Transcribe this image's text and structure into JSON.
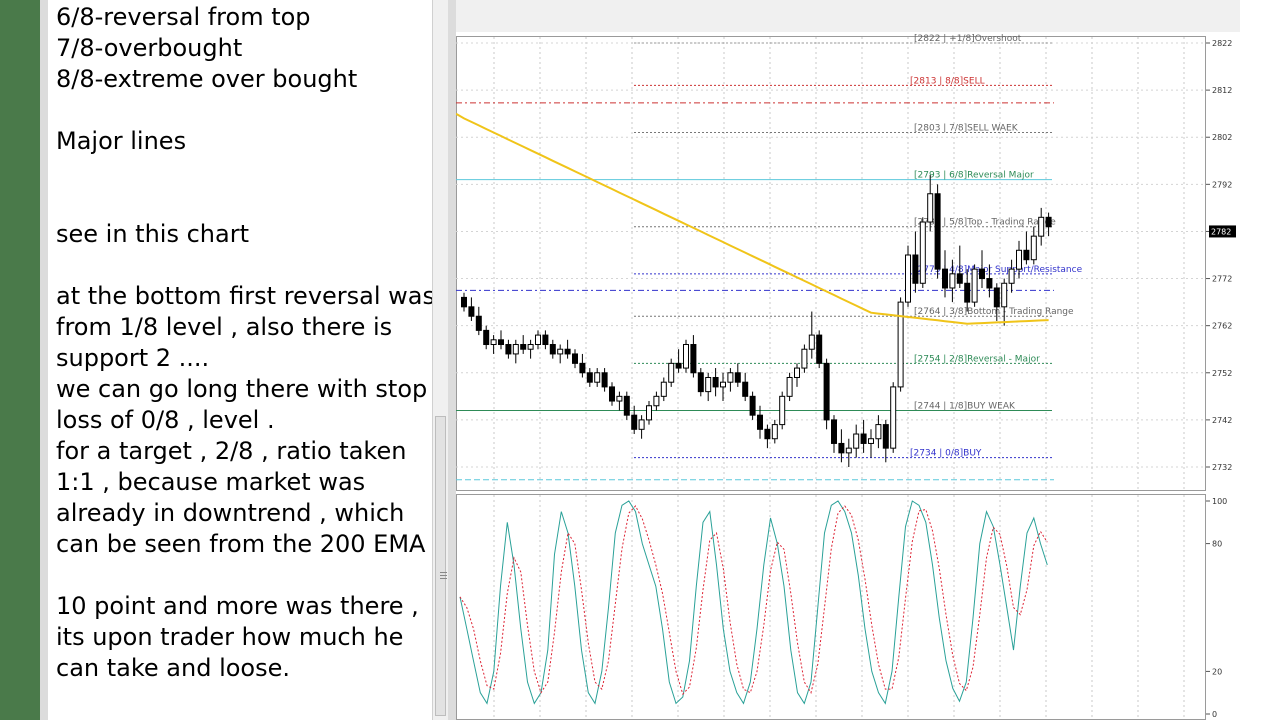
{
  "notes": {
    "lines": [
      "6/8-reversal from top",
      "7/8-overbought",
      "8/8-extreme over bought",
      "",
      "Major lines",
      "",
      "",
      "see in this chart",
      "",
      "at the bottom first reversal was",
      "from 1/8 level , also there is",
      "support 2 ....",
      "we can go long there with stop",
      "loss of 0/8 , level .",
      "for a target , 2/8 , ratio taken",
      "1:1 , because market was",
      "already in downtrend , which",
      "can be seen from the 200 EMA",
      "",
      "10 point and more was there ,",
      "its upon trader how much he",
      "can take and loose."
    ]
  },
  "chart": {
    "price_axis_ticks": [
      "2822",
      "2812",
      "2802",
      "2792",
      "2782",
      "2772",
      "2762",
      "2752",
      "2742",
      "2732"
    ],
    "current_price_tag": "2782",
    "murrey_levels": [
      {
        "label": "[2822 | +1/8]Overshoot",
        "color": "#666666"
      },
      {
        "label": "[2813 | 8/8]SELL",
        "color": "#cc3333"
      },
      {
        "label": "[2803 | 7/8]SELL WAEK",
        "color": "#666666"
      },
      {
        "label": "[2793 | 6/8]Reversal Major",
        "color": "#2e8b57"
      },
      {
        "label": "[2783 | 5/8]Top - Trading Range",
        "color": "#666666"
      },
      {
        "label": "[2773 | 4/8]Major Support/Resistance",
        "color": "#3333cc"
      },
      {
        "label": "[2764 | 3/8]Bottom - Trading Range",
        "color": "#666666"
      },
      {
        "label": "[2754 | 2/8]Reversal - Major",
        "color": "#2e8b57"
      },
      {
        "label": "[2744 | 1/8]BUY WEAK",
        "color": "#666666"
      },
      {
        "label": "[2734 | 0/8]BUY",
        "color": "#3333cc"
      }
    ],
    "stochastic_axis_ticks": [
      "100",
      "80",
      "20",
      "0"
    ],
    "ema_color": "#f0c419",
    "main_line_color": "#2aa198",
    "signal_line_color": "#d23"
  }
}
